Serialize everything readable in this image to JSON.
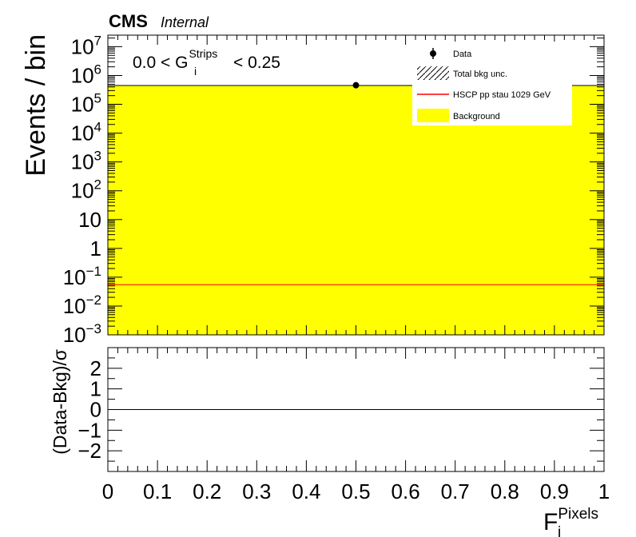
{
  "header": {
    "experiment": "CMS",
    "status": "Internal"
  },
  "chart_data": [
    {
      "panel": "main",
      "type": "bar",
      "ylabel": "Events / bin",
      "y_scale": "log",
      "ylim": [
        0.001,
        30000000
      ],
      "xlim": [
        0,
        1
      ],
      "annotation": {
        "prefix": "0.0 < G",
        "sub": "i",
        "sup": "Strips",
        "suffix": "< 0.25"
      },
      "yticks": [
        {
          "base": "10",
          "exp": "7",
          "plain": ""
        },
        {
          "base": "10",
          "exp": "6",
          "plain": ""
        },
        {
          "base": "10",
          "exp": "5",
          "plain": ""
        },
        {
          "base": "10",
          "exp": "4",
          "plain": ""
        },
        {
          "base": "10",
          "exp": "3",
          "plain": ""
        },
        {
          "base": "10",
          "exp": "2",
          "plain": ""
        },
        {
          "base": "",
          "exp": "",
          "plain": "10"
        },
        {
          "base": "",
          "exp": "",
          "plain": "1"
        },
        {
          "base": "10",
          "exp": "−1",
          "plain": ""
        },
        {
          "base": "10",
          "exp": "−2",
          "plain": ""
        },
        {
          "base": "10",
          "exp": "−3",
          "plain": ""
        }
      ],
      "ytick_values": [
        10000000,
        1000000,
        100000,
        10000,
        1000,
        100,
        10,
        1,
        0.1,
        0.01,
        0.001
      ],
      "legend": [
        {
          "label": "Data",
          "style": "marker"
        },
        {
          "label": "Total bkg unc.",
          "style": "hatch"
        },
        {
          "label": "HSCP pp stau 1029 GeV",
          "style": "line"
        },
        {
          "label": "Background",
          "style": "fill"
        }
      ],
      "series": [
        {
          "name": "Background",
          "kind": "hist",
          "bins": [
            [
              0,
              1
            ]
          ],
          "values": [
            450000
          ],
          "color": "#ffff00"
        },
        {
          "name": "HSCP pp stau 1029 GeV",
          "kind": "hist",
          "bins": [
            [
              0,
              1
            ]
          ],
          "values": [
            0.055
          ],
          "color": "#ff0000"
        },
        {
          "name": "Data",
          "kind": "points",
          "x": [
            0.5
          ],
          "y": [
            460000
          ],
          "color": "#000000"
        }
      ]
    },
    {
      "panel": "ratio",
      "type": "line",
      "ylabel": "(Data-Bkg)/σ",
      "xlabel": {
        "base": "F",
        "sub": "i",
        "sup": "Pixels"
      },
      "ylim": [
        -3,
        3
      ],
      "xlim": [
        0,
        1
      ],
      "yticks": [
        "2",
        "1",
        "0",
        "−1",
        "−2"
      ],
      "ytick_values": [
        2,
        1,
        0,
        -1,
        -2
      ],
      "xticks": [
        "0",
        "0.1",
        "0.2",
        "0.3",
        "0.4",
        "0.5",
        "0.6",
        "0.7",
        "0.8",
        "0.9",
        "1"
      ],
      "xtick_values": [
        0,
        0.1,
        0.2,
        0.3,
        0.4,
        0.5,
        0.6,
        0.7,
        0.8,
        0.9,
        1
      ],
      "series": [
        {
          "kind": "reference-line",
          "y": 0,
          "color": "#000000"
        }
      ]
    }
  ]
}
